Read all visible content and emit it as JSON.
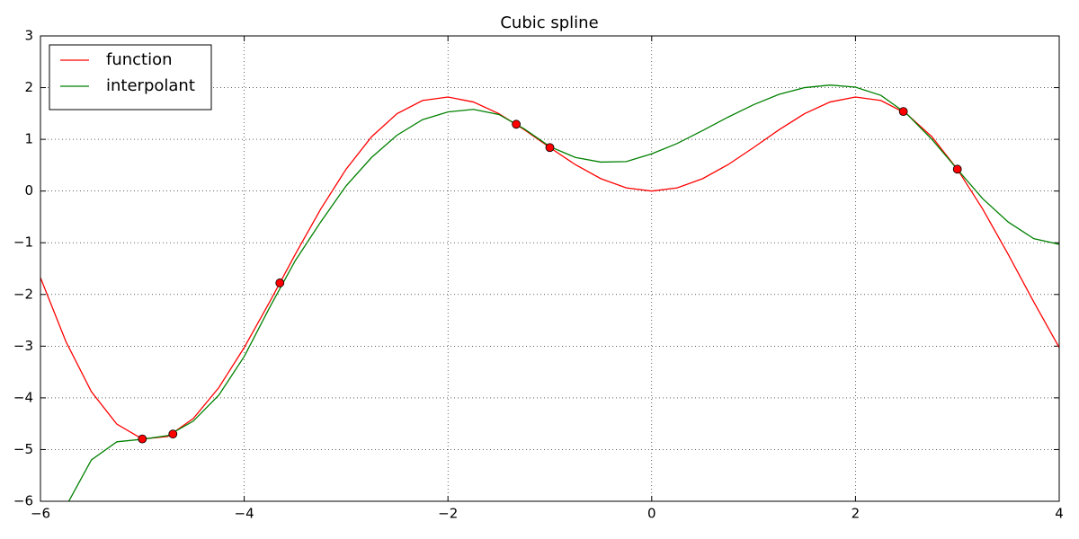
{
  "chart_data": {
    "type": "line",
    "title": "Cubic spline",
    "x": [
      -6,
      -5.75,
      -5.5,
      -5.25,
      -5,
      -4.75,
      -4.5,
      -4.25,
      -4,
      -3.75,
      -3.5,
      -3.25,
      -3,
      -2.75,
      -2.5,
      -2.25,
      -2,
      -1.75,
      -1.5,
      -1.25,
      -1,
      -0.75,
      -0.5,
      -0.25,
      0,
      0.25,
      0.5,
      0.75,
      1,
      1.25,
      1.5,
      1.75,
      2,
      2.25,
      2.5,
      2.75,
      3,
      3.25,
      3.5,
      3.75,
      4
    ],
    "series": [
      {
        "name": "function",
        "color": "#ff0000",
        "values": [
          -1.676,
          -2.912,
          -3.88,
          -4.509,
          -4.795,
          -4.747,
          -4.399,
          -3.804,
          -3.027,
          -2.144,
          -1.228,
          -0.352,
          0.423,
          1.05,
          1.496,
          1.751,
          1.819,
          1.722,
          1.496,
          1.186,
          0.841,
          0.511,
          0.24,
          0.062,
          0,
          0.062,
          0.24,
          0.511,
          0.841,
          1.186,
          1.496,
          1.722,
          1.819,
          1.751,
          1.496,
          1.05,
          0.423,
          -0.352,
          -1.228,
          -2.144,
          -3.027
        ]
      },
      {
        "name": "interpolant",
        "color": "#008000",
        "values": [
          null,
          -6.1,
          -5.2,
          -4.85,
          -4.8,
          -4.73,
          -4.45,
          -3.95,
          -3.2,
          -2.25,
          -1.35,
          -0.6,
          0.1,
          0.65,
          1.08,
          1.38,
          1.53,
          1.58,
          1.48,
          1.2,
          0.86,
          0.65,
          0.56,
          0.57,
          0.72,
          0.92,
          1.17,
          1.43,
          1.67,
          1.87,
          2.0,
          2.05,
          2.01,
          1.85,
          1.5,
          1.0,
          0.42,
          -0.15,
          -0.6,
          -0.92,
          -1.03
        ]
      },
      {
        "type": "scatter",
        "color": "#ff0000",
        "x": [
          -5,
          -4.7,
          -3.65,
          -1.33,
          -1,
          2.47,
          3
        ],
        "values": [
          -4.795,
          -4.7,
          -1.777,
          1.292,
          0.841,
          1.538,
          0.423
        ]
      }
    ],
    "xlim": [
      -6,
      4
    ],
    "ylim": [
      -6,
      3
    ],
    "xticks": [
      {
        "value": -6,
        "label": "−6"
      },
      {
        "value": -4,
        "label": "−4"
      },
      {
        "value": -2,
        "label": "−2"
      },
      0,
      2,
      4
    ],
    "yticks": [
      {
        "value": -6,
        "label": "−6"
      },
      {
        "value": -5,
        "label": "−5"
      },
      {
        "value": -4,
        "label": "−4"
      },
      {
        "value": -3,
        "label": "−3"
      },
      {
        "value": -2,
        "label": "−2"
      },
      {
        "value": -1,
        "label": "−1"
      },
      0,
      1,
      2,
      3
    ],
    "grid": true,
    "legend": "upper left"
  }
}
